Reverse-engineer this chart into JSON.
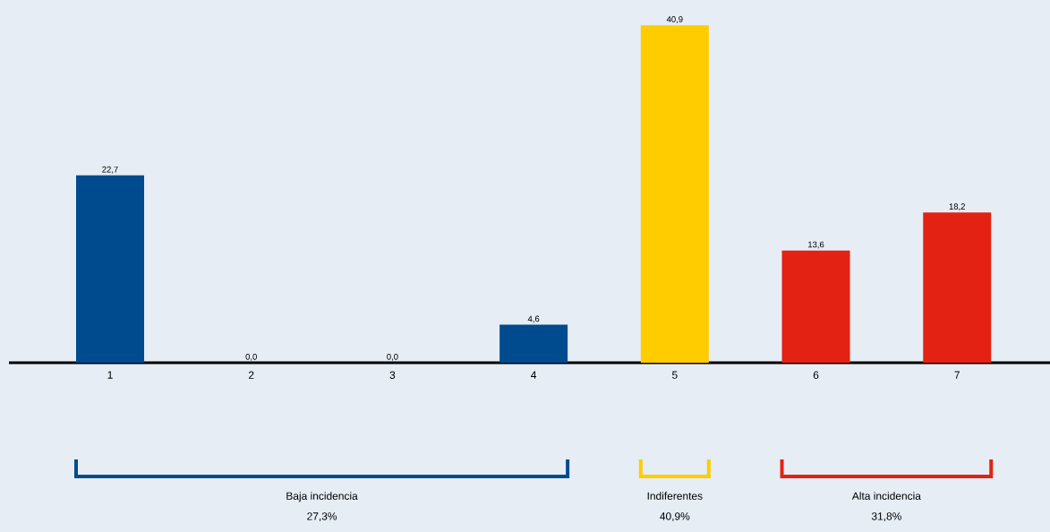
{
  "chart_data": {
    "type": "bar",
    "categories": [
      "1",
      "2",
      "3",
      "4",
      "5",
      "6",
      "7"
    ],
    "values": [
      22.7,
      0.0,
      0.0,
      4.6,
      40.9,
      13.6,
      18.2
    ],
    "colors": [
      "#004b8d",
      "#004b8d",
      "#004b8d",
      "#004b8d",
      "#ffcc00",
      "#e32213",
      "#e32213"
    ],
    "value_labels": [
      "22,7",
      "0,0",
      "0,0",
      "4,6",
      "40,9",
      "13,6",
      "18,2"
    ],
    "tick_labels": "x",
    "annotations": [
      "Baja incidencia",
      "27,3%",
      "Indiferentes",
      "40,9%",
      "Alta incidencia",
      "31,8%"
    ]
  }
}
